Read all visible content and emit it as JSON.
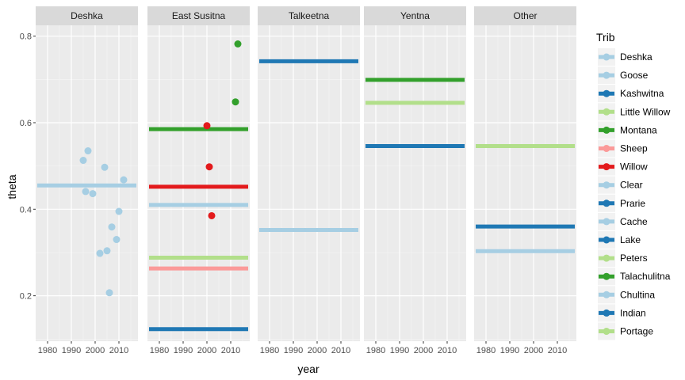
{
  "chart_data": {
    "type": "scatter",
    "facet_var": "Trib",
    "panels": [
      "Deshka",
      "East Susitna",
      "Talkeetna",
      "Yentna",
      "Other"
    ],
    "xlabel": "year",
    "ylabel": "theta",
    "xlim": [
      1975,
      2018
    ],
    "ylim": [
      0.095,
      0.825
    ],
    "x_ticks": [
      1980,
      1990,
      2000,
      2010
    ],
    "x_tick_labels": [
      "1980",
      "1990",
      "2000",
      "2010"
    ],
    "y_ticks": [
      0.2,
      0.4,
      0.6,
      0.8
    ],
    "y_tick_labels": [
      "0.2",
      "0.4",
      "0.6",
      "0.8"
    ],
    "grid": true,
    "legend": {
      "title": "Trib",
      "position": "right",
      "entries": [
        {
          "name": "Deshka",
          "color": "#a6cee3"
        },
        {
          "name": "Goose",
          "color": "#a6cee3"
        },
        {
          "name": "Kashwitna",
          "color": "#1f78b4"
        },
        {
          "name": "Little Willow",
          "color": "#b2df8a"
        },
        {
          "name": "Montana",
          "color": "#33a02c"
        },
        {
          "name": "Sheep",
          "color": "#fb9a99"
        },
        {
          "name": "Willow",
          "color": "#e31a1c"
        },
        {
          "name": "Clear",
          "color": "#a6cee3"
        },
        {
          "name": "Prarie",
          "color": "#1f78b4"
        },
        {
          "name": "Cache",
          "color": "#a6cee3"
        },
        {
          "name": "Lake",
          "color": "#1f78b4"
        },
        {
          "name": "Peters",
          "color": "#b2df8a"
        },
        {
          "name": "Talachulitna",
          "color": "#33a02c"
        },
        {
          "name": "Chultina",
          "color": "#a6cee3"
        },
        {
          "name": "Indian",
          "color": "#1f78b4"
        },
        {
          "name": "Portage",
          "color": "#b2df8a"
        }
      ]
    },
    "hlines": [
      {
        "panel": "Deshka",
        "trib": "Deshka",
        "y": 0.455
      },
      {
        "panel": "East Susitna",
        "trib": "Montana",
        "y": 0.585
      },
      {
        "panel": "East Susitna",
        "trib": "Willow",
        "y": 0.452
      },
      {
        "panel": "East Susitna",
        "trib": "Goose",
        "y": 0.41
      },
      {
        "panel": "East Susitna",
        "trib": "Little Willow",
        "y": 0.288
      },
      {
        "panel": "East Susitna",
        "trib": "Sheep",
        "y": 0.263
      },
      {
        "panel": "East Susitna",
        "trib": "Kashwitna",
        "y": 0.123
      },
      {
        "panel": "Talkeetna",
        "trib": "Prarie",
        "y": 0.742
      },
      {
        "panel": "Talkeetna",
        "trib": "Clear",
        "y": 0.352
      },
      {
        "panel": "Yentna",
        "trib": "Talachulitna",
        "y": 0.699
      },
      {
        "panel": "Yentna",
        "trib": "Peters",
        "y": 0.646
      },
      {
        "panel": "Yentna",
        "trib": "Lake",
        "y": 0.546
      },
      {
        "panel": "Other",
        "trib": "Portage",
        "y": 0.546
      },
      {
        "panel": "Other",
        "trib": "Indian",
        "y": 0.36
      },
      {
        "panel": "Other",
        "trib": "Chultina",
        "y": 0.303
      }
    ],
    "points": [
      {
        "panel": "Deshka",
        "trib": "Deshka",
        "x": 1995,
        "y": 0.513
      },
      {
        "panel": "Deshka",
        "trib": "Deshka",
        "x": 1997,
        "y": 0.535
      },
      {
        "panel": "Deshka",
        "trib": "Deshka",
        "x": 1996,
        "y": 0.441
      },
      {
        "panel": "Deshka",
        "trib": "Deshka",
        "x": 1999,
        "y": 0.436
      },
      {
        "panel": "Deshka",
        "trib": "Deshka",
        "x": 2002,
        "y": 0.298
      },
      {
        "panel": "Deshka",
        "trib": "Deshka",
        "x": 2004,
        "y": 0.497
      },
      {
        "panel": "Deshka",
        "trib": "Deshka",
        "x": 2005,
        "y": 0.304
      },
      {
        "panel": "Deshka",
        "trib": "Deshka",
        "x": 2006,
        "y": 0.207
      },
      {
        "panel": "Deshka",
        "trib": "Deshka",
        "x": 2007,
        "y": 0.359
      },
      {
        "panel": "Deshka",
        "trib": "Deshka",
        "x": 2009,
        "y": 0.33
      },
      {
        "panel": "Deshka",
        "trib": "Deshka",
        "x": 2010,
        "y": 0.395
      },
      {
        "panel": "Deshka",
        "trib": "Deshka",
        "x": 2012,
        "y": 0.468
      },
      {
        "panel": "East Susitna",
        "trib": "Montana",
        "x": 2013,
        "y": 0.782
      },
      {
        "panel": "East Susitna",
        "trib": "Montana",
        "x": 2012,
        "y": 0.648
      },
      {
        "panel": "East Susitna",
        "trib": "Willow",
        "x": 2000,
        "y": 0.593
      },
      {
        "panel": "East Susitna",
        "trib": "Willow",
        "x": 2001,
        "y": 0.498
      },
      {
        "panel": "East Susitna",
        "trib": "Willow",
        "x": 2002,
        "y": 0.385
      }
    ]
  }
}
